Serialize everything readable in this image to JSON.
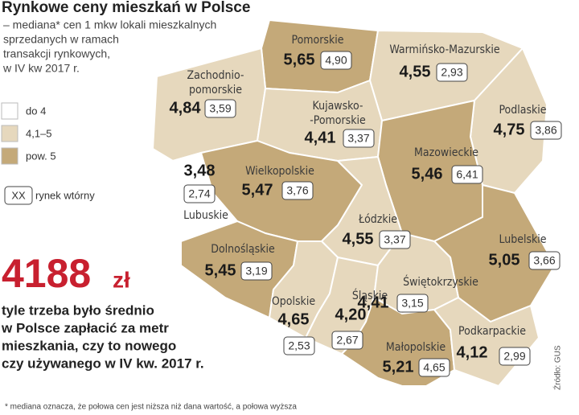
{
  "title": "Rynkowe ceny mieszkań w Polsce",
  "subtitle": [
    "– mediana* cen 1 mkw lokali mieszkalnych",
    "sprzedanych w ramach",
    "transakcji rynkowych,",
    "w IV kw 2017 r."
  ],
  "legend": {
    "items": [
      {
        "label": "do 4",
        "color": "#ffffff"
      },
      {
        "label": "4,1–5",
        "color": "#e6d8bd"
      },
      {
        "label": "pow. 5",
        "color": "#c4a979"
      }
    ],
    "box_sample": "XX",
    "box_label": "rynek wtórny"
  },
  "highlight": {
    "value": "4188",
    "unit": "zł",
    "caption": [
      "tyle trzeba było średnio",
      "w Polsce zapłacić za metr",
      "mieszkania, czy to nowego",
      "czy używanego w IV kw. 2017 r."
    ]
  },
  "regions": [
    {
      "name": [
        "Pomorskie"
      ],
      "value": "5,65",
      "secondary": "4,90",
      "color": "#c4a979"
    },
    {
      "name": [
        "Warmińsko-Mazurskie"
      ],
      "value": "4,55",
      "secondary": "2,93",
      "color": "#e6d8bd"
    },
    {
      "name": [
        "Zachodnio-",
        "pomorskie"
      ],
      "value": "4,84",
      "secondary": "3,59",
      "color": "#e6d8bd"
    },
    {
      "name": [
        "Kujawsko-",
        "-Pomorskie"
      ],
      "value": "4,41",
      "secondary": "3,37",
      "color": "#e6d8bd"
    },
    {
      "name": [
        "Podlaskie"
      ],
      "value": "4,75",
      "secondary": "3,86",
      "color": "#e6d8bd"
    },
    {
      "name": [
        "Mazowieckie"
      ],
      "value": "5,46",
      "secondary": "6,41",
      "color": "#c4a979"
    },
    {
      "name": [
        "Lubuskie"
      ],
      "value": "3,48",
      "secondary": "2,74",
      "color": "#ffffff"
    },
    {
      "name": [
        "Wielkopolskie"
      ],
      "value": "5,47",
      "secondary": "3,76",
      "color": "#c4a979"
    },
    {
      "name": [
        "Łódzkie"
      ],
      "value": "4,55",
      "secondary": "3,37",
      "color": "#e6d8bd"
    },
    {
      "name": [
        "Lubelskie"
      ],
      "value": "5,05",
      "secondary": "3,66",
      "color": "#c4a979"
    },
    {
      "name": [
        "Dolnośląskie"
      ],
      "value": "5,45",
      "secondary": "3,19",
      "color": "#c4a979"
    },
    {
      "name": [
        "Opolskie"
      ],
      "value": "4,65",
      "secondary": "2,53",
      "color": "#e6d8bd"
    },
    {
      "name": [
        "Śląskie"
      ],
      "value": "4,20",
      "secondary": "2,67",
      "color": "#e6d8bd"
    },
    {
      "name": [
        "Świętokrzyskie"
      ],
      "value": "4,41",
      "secondary": "3,15",
      "color": "#e6d8bd"
    },
    {
      "name": [
        "Małopolskie"
      ],
      "value": "5,21",
      "secondary": "4,65",
      "color": "#c4a979"
    },
    {
      "name": [
        "Podkarpackie"
      ],
      "value": "4,12",
      "secondary": "2,99",
      "color": "#e6d8bd"
    }
  ],
  "footnote": "* mediana oznacza, że połowa cen jest niższa niż dana wartość, a połowa wyższa",
  "source": "Źródło: GUS"
}
